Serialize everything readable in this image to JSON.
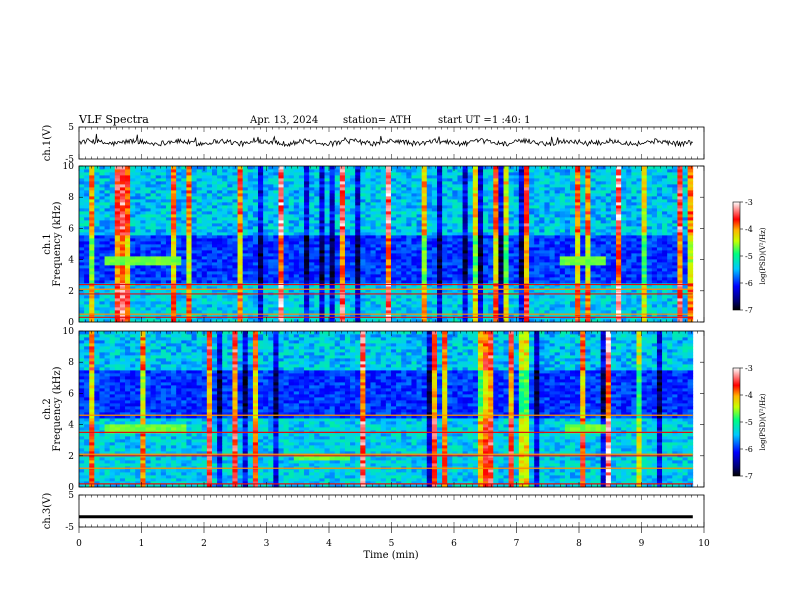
{
  "header": {
    "title": "VLF Spectra",
    "date": "Apr. 13, 2024",
    "station": "station= ATH",
    "start_label": "start UT = ",
    "start_time": "1 :40: 1"
  },
  "chart_data": {
    "type": "heatmap",
    "xlabel": "Time (min)",
    "xlim": [
      0,
      10
    ],
    "x_ticks": [
      0,
      1,
      2,
      3,
      4,
      5,
      6,
      7,
      8,
      9,
      10
    ],
    "data_end_min": 9.82,
    "panels": [
      {
        "type": "line",
        "ylabel": "ch.1(V)",
        "ylim": [
          -5,
          5
        ],
        "y_ticks": [
          5,
          -5
        ],
        "trace_level": 0.2,
        "trace_color": "#000000"
      },
      {
        "type": "heatmap",
        "ylabel_1": "ch.1",
        "ylabel_2": "Frequency (kHz)",
        "ylim": [
          0,
          10
        ],
        "y_ticks": [
          0,
          2,
          4,
          6,
          8,
          10
        ],
        "colorbar": {
          "label": "log(PSD)(V²/Hz)",
          "range": [
            -7,
            -3
          ],
          "ticks": [
            -3,
            -4,
            -5,
            -6,
            -7
          ]
        },
        "features": {
          "noise_floor_band_khz": [
            2.5,
            5.5
          ],
          "strong_lines_khz": [
            0.3,
            0.5,
            1.8,
            2.1,
            2.4
          ],
          "bright_patches": [
            {
              "t": [
                0.4,
                1.65
              ],
              "f": [
                3.7,
                4.2
              ]
            },
            {
              "t": [
                7.7,
                8.4
              ],
              "f": [
                3.7,
                4.2
              ]
            }
          ]
        }
      },
      {
        "type": "heatmap",
        "ylabel_1": "ch.2",
        "ylabel_2": "Frequency (kHz)",
        "ylim": [
          0,
          10
        ],
        "y_ticks": [
          0,
          2,
          4,
          6,
          8,
          10
        ],
        "colorbar": {
          "label": "log(PSD)(V²/Hz)",
          "range": [
            -7,
            -3
          ],
          "ticks": [
            -3,
            -4,
            -5,
            -6,
            -7
          ]
        },
        "features": {
          "noise_floor_band_khz": [
            4.5,
            7.5
          ],
          "strong_lines_khz": [
            0.2,
            1.2,
            2.0,
            2.1,
            3.5,
            4.6
          ],
          "bright_patches": [
            {
              "t": [
                0.4,
                1.7
              ],
              "f": [
                3.5,
                4.0
              ]
            },
            {
              "t": [
                7.8,
                8.4
              ],
              "f": [
                3.5,
                4.0
              ]
            },
            {
              "t": [
                3.4,
                4.3
              ],
              "f": [
                1.8,
                2.1
              ]
            }
          ]
        }
      },
      {
        "type": "line",
        "ylabel": "ch.3(V)",
        "ylim": [
          -5,
          5
        ],
        "y_ticks": [
          5,
          -5
        ],
        "trace_level": -1.8,
        "trace_color": "#000000"
      }
    ]
  }
}
